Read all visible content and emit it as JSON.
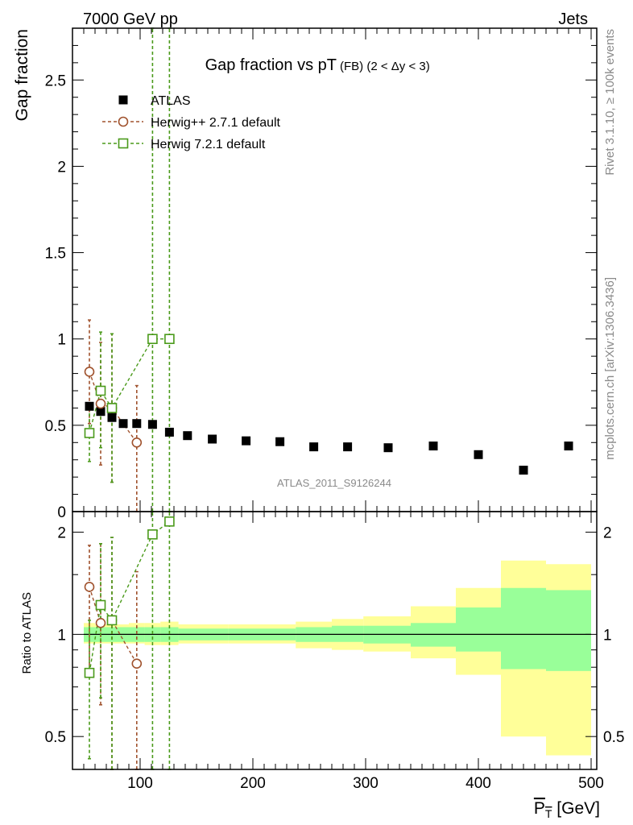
{
  "header": {
    "energy_label": "7000 GeV pp",
    "process_label": "Jets",
    "rivet_label": "Rivet 3.1.10, ≥ 100k events",
    "mcplots_label": "mcplots.cern.ch [arXiv:1306.3436]",
    "analysis_label": "ATLAS_2011_S9126244"
  },
  "colors": {
    "data": "#000000",
    "herwigpp": "#a0522d",
    "herwig7": "#4a9a1a",
    "band_inner": "#99ff99",
    "band_outer": "#ffff99"
  },
  "chart_data": [
    {
      "type": "scatter",
      "title_main": "Gap fraction vs pT",
      "title_sub": "(FB) (2 < Δy < 3)",
      "ylabel": "Gap fraction",
      "xlim": [
        40,
        505
      ],
      "ylim": [
        0,
        2.8
      ],
      "yticks": [
        0,
        0.5,
        1,
        1.5,
        2,
        2.5
      ],
      "ytick_labels": [
        "0",
        "0.5",
        "1",
        "1.5",
        "2",
        "2.5"
      ],
      "legend_position": "top-left",
      "legend": [
        "ATLAS",
        "Herwig++ 2.7.1 default",
        "Herwig 7.2.1 default"
      ],
      "series": [
        {
          "name": "ATLAS",
          "marker": "filled-square",
          "x": [
            55,
            65,
            75,
            85,
            97,
            111,
            126,
            142,
            164,
            194,
            224,
            254,
            284,
            320,
            360,
            400,
            440,
            480
          ],
          "y": [
            0.61,
            0.58,
            0.545,
            0.51,
            0.51,
            0.505,
            0.46,
            0.44,
            0.42,
            0.41,
            0.405,
            0.375,
            0.375,
            0.37,
            0.38,
            0.33,
            0.24,
            0.38
          ]
        },
        {
          "name": "Herwig++ 2.7.1 default",
          "marker": "open-circle",
          "x": [
            55,
            65,
            75,
            97
          ],
          "y": [
            0.81,
            0.625,
            0.6,
            0.4
          ],
          "yerr_lo": [
            0.51,
            0.27,
            0.17,
            0
          ],
          "yerr_hi": [
            1.11,
            0.98,
            1.03,
            0.73
          ]
        },
        {
          "name": "Herwig 7.2.1 default",
          "marker": "open-square",
          "x": [
            55,
            65,
            75,
            111,
            126
          ],
          "y": [
            0.455,
            0.7,
            0.6,
            1.0,
            1.0
          ],
          "yerr_lo": [
            0.29,
            0.37,
            0.17,
            0,
            0
          ],
          "yerr_hi": [
            0.62,
            1.04,
            1.03,
            2.8,
            2.8
          ]
        }
      ]
    },
    {
      "type": "line",
      "ylabel": "Ratio to ATLAS",
      "xlabel": "P_T [GeV]",
      "xlim": [
        40,
        505
      ],
      "ylim": [
        0.4,
        2.3
      ],
      "yscale": "log",
      "xticks": [
        100,
        200,
        300,
        400,
        500
      ],
      "xtick_labels": [
        "100",
        "200",
        "300",
        "400",
        "500"
      ],
      "yticks": [
        0.5,
        1,
        2
      ],
      "ytick_labels": [
        "0.5",
        "1",
        "2"
      ],
      "bands": {
        "edges": [
          50,
          60,
          70,
          80,
          90,
          104,
          118,
          134,
          150,
          178,
          210,
          238,
          270,
          298,
          340,
          380,
          420,
          460,
          500
        ],
        "inner_lo": [
          0.95,
          0.95,
          0.95,
          0.95,
          0.95,
          0.95,
          0.95,
          0.96,
          0.96,
          0.96,
          0.96,
          0.95,
          0.95,
          0.94,
          0.92,
          0.89,
          0.79,
          0.78
        ],
        "inner_hi": [
          1.05,
          1.05,
          1.05,
          1.05,
          1.05,
          1.05,
          1.05,
          1.04,
          1.04,
          1.04,
          1.04,
          1.05,
          1.06,
          1.06,
          1.08,
          1.2,
          1.37,
          1.35
        ],
        "outer_lo": [
          0.94,
          0.94,
          0.94,
          0.94,
          0.94,
          0.93,
          0.93,
          0.94,
          0.94,
          0.94,
          0.94,
          0.91,
          0.9,
          0.89,
          0.85,
          0.76,
          0.5,
          0.44
        ],
        "outer_hi": [
          1.08,
          1.07,
          1.07,
          1.07,
          1.08,
          1.08,
          1.09,
          1.07,
          1.07,
          1.07,
          1.07,
          1.09,
          1.11,
          1.13,
          1.21,
          1.37,
          1.65,
          1.61
        ]
      },
      "series": [
        {
          "name": "Herwig++ 2.7.1 default",
          "marker": "open-circle",
          "x": [
            55,
            65,
            75,
            97
          ],
          "y": [
            1.38,
            1.08,
            1.1,
            0.82
          ],
          "yerr_lo": [
            0.75,
            0.62,
            0.4,
            0.4
          ],
          "yerr_hi": [
            1.83,
            1.85,
            1.93,
            1.53
          ]
        },
        {
          "name": "Herwig 7.2.1 default",
          "marker": "open-square",
          "x": [
            55,
            65,
            75,
            111,
            126
          ],
          "y": [
            0.77,
            1.22,
            1.1,
            1.97,
            2.15
          ],
          "yerr_lo": [
            0.43,
            0.65,
            0.4,
            0.4,
            0.4
          ],
          "yerr_hi": [
            1.1,
            1.85,
            1.93,
            2.3,
            2.3
          ]
        }
      ]
    }
  ]
}
